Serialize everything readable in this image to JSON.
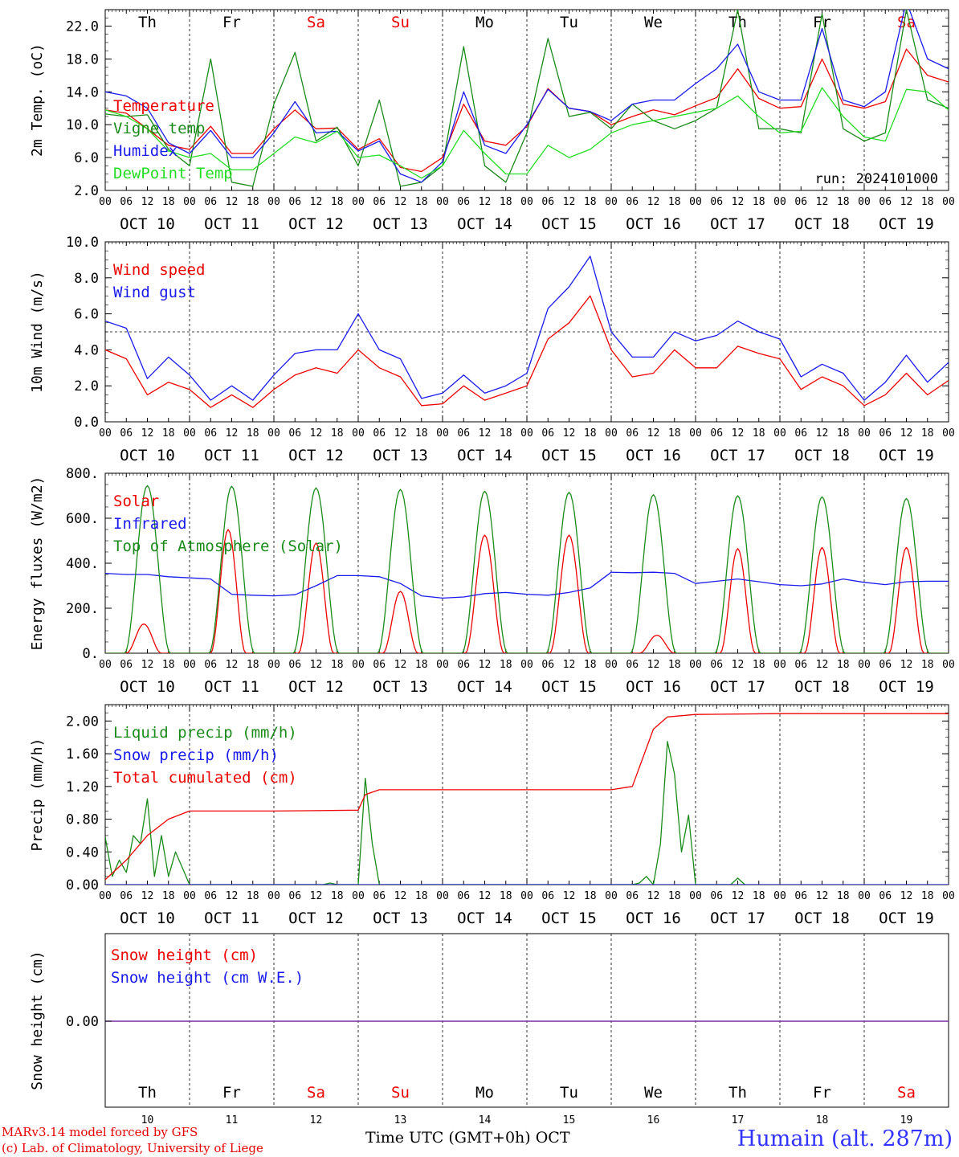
{
  "days": {
    "weekday_labels": [
      "Th",
      "Fr",
      "Sa",
      "Su",
      "Mo",
      "Tu",
      "We",
      "Th",
      "Fr",
      "Sa"
    ],
    "weekend_flags": [
      false,
      false,
      true,
      true,
      false,
      false,
      false,
      false,
      false,
      true
    ],
    "date_labels": [
      "OCT 10",
      "OCT 11",
      "OCT 12",
      "OCT 13",
      "OCT 14",
      "OCT 15",
      "OCT 16",
      "OCT 17",
      "OCT 18",
      "OCT 19"
    ],
    "hour_labels": [
      "00",
      "06",
      "12",
      "18"
    ],
    "final_hour_label": "00",
    "bottom_day_numbers": [
      "10",
      "11",
      "12",
      "13",
      "14",
      "15",
      "16",
      "17",
      "18",
      "19"
    ]
  },
  "colors": {
    "red": "#ee0000",
    "green": "#1a8a1a",
    "blue": "#1a1aee",
    "light_green": "#22dd22",
    "purple": "#7a2aa6",
    "weekend_label": "#ee0000",
    "weekday_label": "#000000"
  },
  "footer": {
    "model_line": "MARv3.14 model forced by GFS",
    "copyright_line": "(c) Lab. of Climatology, University of Liege",
    "axis_title": "Time UTC (GMT+0h) OCT",
    "station_title": "Humain (alt. 287m)"
  },
  "chart_data": [
    {
      "type": "line",
      "ylabel": "2m Temp. (oC)",
      "ylim": [
        2.0,
        24.0
      ],
      "yticks": [
        2.0,
        6.0,
        10.0,
        14.0,
        18.0,
        22.0
      ],
      "ytick_labels": [
        "2.0",
        "6.0",
        "10.0",
        "14.0",
        "18.0",
        "22.0"
      ],
      "annotation": "run: 2024101000",
      "legend_placement": "top-left",
      "x_unit": "hours since Oct 10 00 UTC",
      "series": [
        {
          "name": "Temperature",
          "color": "#ee0000",
          "x": [
            0,
            6,
            12,
            18,
            24,
            30,
            36,
            42,
            48,
            54,
            60,
            66,
            72,
            78,
            84,
            90,
            96,
            102,
            108,
            114,
            120,
            126,
            132,
            138,
            144,
            150,
            156,
            162,
            168,
            174,
            180,
            186,
            192,
            198,
            204,
            210,
            216,
            222,
            228,
            234,
            240
          ],
          "y": [
            11.8,
            11.4,
            9.5,
            7.5,
            7.0,
            9.8,
            6.5,
            6.5,
            9.5,
            11.8,
            9.5,
            9.6,
            7.0,
            8.3,
            4.8,
            4.3,
            6.0,
            12.5,
            8.0,
            7.5,
            9.8,
            14.4,
            12.0,
            11.6,
            10.0,
            11.0,
            11.8,
            11.2,
            12.3,
            13.3,
            16.8,
            13.2,
            12.0,
            12.2,
            18.0,
            12.5,
            12.0,
            12.8,
            19.2,
            16.0,
            15.2
          ]
        },
        {
          "name": "Vigne temp",
          "color": "#1a8a1a",
          "x": [
            0,
            6,
            12,
            18,
            24,
            30,
            36,
            42,
            48,
            54,
            60,
            66,
            72,
            78,
            84,
            90,
            96,
            102,
            108,
            114,
            120,
            126,
            132,
            138,
            144,
            150,
            156,
            162,
            168,
            174,
            180,
            186,
            192,
            198,
            204,
            210,
            216,
            222,
            228,
            234,
            240
          ],
          "y": [
            11.3,
            11.0,
            11.2,
            7.0,
            5.0,
            18.0,
            3.0,
            2.5,
            12.5,
            18.8,
            8.0,
            9.7,
            5.0,
            13.0,
            2.5,
            3.0,
            5.0,
            19.5,
            5.0,
            3.0,
            9.0,
            20.5,
            11.0,
            11.5,
            9.5,
            12.5,
            10.5,
            9.5,
            10.5,
            12.0,
            24.0,
            9.5,
            9.5,
            9.0,
            23.5,
            9.5,
            8.0,
            9.0,
            24.0,
            13.0,
            12.0
          ]
        },
        {
          "name": "Humidex",
          "color": "#1a1aee",
          "x": [
            0,
            6,
            12,
            18,
            24,
            30,
            36,
            42,
            48,
            54,
            60,
            66,
            72,
            78,
            84,
            90,
            96,
            102,
            108,
            114,
            120,
            126,
            132,
            138,
            144,
            150,
            156,
            162,
            168,
            174,
            180,
            186,
            192,
            198,
            204,
            210,
            216,
            222,
            228,
            234,
            240
          ],
          "y": [
            14.0,
            13.5,
            12.0,
            7.8,
            6.5,
            9.3,
            6.0,
            6.0,
            9.0,
            12.8,
            9.0,
            9.2,
            6.8,
            8.0,
            4.0,
            3.0,
            5.5,
            14.0,
            7.5,
            6.5,
            10.0,
            14.3,
            12.0,
            11.6,
            10.5,
            12.5,
            13.0,
            13.0,
            15.0,
            16.8,
            19.8,
            14.0,
            13.0,
            13.0,
            21.7,
            13.0,
            12.2,
            14.0,
            25.0,
            18.0,
            16.8
          ]
        },
        {
          "name": "DewPoint Temp",
          "color": "#22dd22",
          "x": [
            0,
            6,
            12,
            18,
            24,
            30,
            36,
            42,
            48,
            54,
            60,
            66,
            72,
            78,
            84,
            90,
            96,
            102,
            108,
            114,
            120,
            126,
            132,
            138,
            144,
            150,
            156,
            162,
            168,
            174,
            180,
            186,
            192,
            198,
            204,
            210,
            216,
            222,
            228,
            234,
            240
          ],
          "y": [
            11.8,
            11.0,
            9.5,
            6.8,
            6.0,
            6.5,
            4.5,
            4.5,
            6.5,
            8.5,
            7.8,
            9.2,
            6.0,
            6.3,
            5.0,
            3.5,
            5.0,
            9.3,
            6.5,
            4.0,
            4.0,
            7.5,
            6.0,
            7.0,
            9.0,
            10.0,
            10.5,
            11.0,
            11.5,
            12.0,
            13.5,
            11.0,
            9.0,
            9.2,
            14.5,
            11.0,
            8.5,
            8.0,
            14.3,
            14.0,
            11.8
          ]
        }
      ]
    },
    {
      "type": "line",
      "ylabel": "10m Wind (m/s)",
      "ylim": [
        0.0,
        10.0
      ],
      "yticks": [
        0.0,
        2.0,
        4.0,
        6.0,
        8.0,
        10.0
      ],
      "ytick_labels": [
        "0.0",
        "2.0",
        "4.0",
        "6.0",
        "8.0",
        "10.0"
      ],
      "reference_line": 5.0,
      "legend_placement": "top-left",
      "x_unit": "hours since Oct 10 00 UTC",
      "series": [
        {
          "name": "Wind speed",
          "color": "#ee0000",
          "x": [
            0,
            6,
            12,
            18,
            24,
            30,
            36,
            42,
            48,
            54,
            60,
            66,
            72,
            78,
            84,
            90,
            96,
            102,
            108,
            114,
            120,
            126,
            132,
            138,
            144,
            150,
            156,
            162,
            168,
            174,
            180,
            186,
            192,
            198,
            204,
            210,
            216,
            222,
            228,
            234,
            240
          ],
          "y": [
            4.0,
            3.5,
            1.5,
            2.2,
            1.8,
            0.8,
            1.5,
            0.8,
            1.8,
            2.6,
            3.0,
            2.7,
            4.0,
            3.0,
            2.5,
            0.9,
            1.0,
            2.0,
            1.2,
            1.6,
            2.0,
            4.6,
            5.5,
            7.0,
            4.0,
            2.5,
            2.7,
            4.0,
            3.0,
            3.0,
            4.2,
            3.8,
            3.5,
            1.8,
            2.5,
            2.0,
            0.9,
            1.5,
            2.7,
            1.5,
            2.3
          ]
        },
        {
          "name": "Wind gust",
          "color": "#1a1aee",
          "x": [
            0,
            6,
            12,
            18,
            24,
            30,
            36,
            42,
            48,
            54,
            60,
            66,
            72,
            78,
            84,
            90,
            96,
            102,
            108,
            114,
            120,
            126,
            132,
            138,
            144,
            150,
            156,
            162,
            168,
            174,
            180,
            186,
            192,
            198,
            204,
            210,
            216,
            222,
            228,
            234,
            240
          ],
          "y": [
            5.6,
            5.2,
            2.4,
            3.6,
            2.6,
            1.2,
            2.0,
            1.2,
            2.6,
            3.8,
            4.0,
            4.0,
            6.0,
            4.0,
            3.5,
            1.3,
            1.6,
            2.6,
            1.6,
            2.0,
            2.7,
            6.3,
            7.5,
            9.2,
            5.0,
            3.6,
            3.6,
            5.0,
            4.5,
            4.8,
            5.6,
            5.0,
            4.6,
            2.5,
            3.2,
            2.7,
            1.2,
            2.2,
            3.7,
            2.2,
            3.3
          ]
        }
      ]
    },
    {
      "type": "line",
      "ylabel": "Energy fluxes (W/m2)",
      "ylim": [
        0,
        800
      ],
      "yticks": [
        0,
        200,
        400,
        600,
        800
      ],
      "ytick_labels": [
        "0.",
        "200.",
        "400.",
        "600.",
        "800."
      ],
      "legend_placement": "top-left",
      "x_unit": "hours since Oct 10 00 UTC",
      "series": [
        {
          "name": "Solar",
          "color": "#ee0000",
          "peaks": [
            {
              "x": 11,
              "y": 130,
              "half_width": 5
            },
            {
              "x": 35,
              "y": 550,
              "half_width": 5
            },
            {
              "x": 60,
              "y": 490,
              "half_width": 5
            },
            {
              "x": 84,
              "y": 275,
              "half_width": 5
            },
            {
              "x": 108,
              "y": 525,
              "half_width": 5.5
            },
            {
              "x": 132,
              "y": 525,
              "half_width": 5.5
            },
            {
              "x": 157,
              "y": 80,
              "half_width": 5
            },
            {
              "x": 180,
              "y": 465,
              "half_width": 5
            },
            {
              "x": 204,
              "y": 470,
              "half_width": 5
            },
            {
              "x": 228,
              "y": 470,
              "half_width": 5
            }
          ]
        },
        {
          "name": "Infrared",
          "color": "#1a1aee",
          "x": [
            0,
            6,
            12,
            18,
            24,
            30,
            36,
            42,
            48,
            54,
            60,
            66,
            72,
            78,
            84,
            90,
            96,
            102,
            108,
            114,
            120,
            126,
            132,
            138,
            144,
            150,
            156,
            162,
            168,
            174,
            180,
            186,
            192,
            198,
            204,
            210,
            216,
            222,
            228,
            234,
            240
          ],
          "y": [
            355,
            350,
            350,
            340,
            335,
            330,
            262,
            258,
            255,
            260,
            300,
            345,
            345,
            340,
            310,
            255,
            245,
            250,
            265,
            270,
            262,
            258,
            270,
            290,
            360,
            358,
            360,
            355,
            310,
            320,
            330,
            318,
            305,
            300,
            308,
            330,
            315,
            305,
            318,
            320,
            320
          ]
        },
        {
          "name": "Top of Atmosphere (Solar)",
          "color": "#1a8a1a",
          "peaks": [
            {
              "x": 12,
              "y": 745,
              "half_width": 6.5
            },
            {
              "x": 36,
              "y": 742,
              "half_width": 6.5
            },
            {
              "x": 60,
              "y": 735,
              "half_width": 6.5
            },
            {
              "x": 84,
              "y": 728,
              "half_width": 6.5
            },
            {
              "x": 108,
              "y": 720,
              "half_width": 6.5
            },
            {
              "x": 132,
              "y": 715,
              "half_width": 6.5
            },
            {
              "x": 156,
              "y": 705,
              "half_width": 6.5
            },
            {
              "x": 180,
              "y": 700,
              "half_width": 6.5
            },
            {
              "x": 204,
              "y": 695,
              "half_width": 6.5
            },
            {
              "x": 228,
              "y": 688,
              "half_width": 6.5
            }
          ]
        }
      ]
    },
    {
      "type": "line",
      "ylabel": "Precip (mm/h)",
      "ylim": [
        0.0,
        2.2
      ],
      "yticks": [
        0.0,
        0.4,
        0.8,
        1.2,
        1.6,
        2.0
      ],
      "ytick_labels": [
        "0.00",
        "0.40",
        "0.80",
        "1.20",
        "1.60",
        "2.00"
      ],
      "legend_placement": "top-left",
      "x_unit": "hours since Oct 10 00 UTC",
      "series": [
        {
          "name": "Liquid precip (mm/h)",
          "color": "#1a8a1a",
          "x": [
            0,
            2,
            4,
            6,
            8,
            10,
            12,
            14,
            16,
            18,
            20,
            22,
            24,
            26,
            28,
            60,
            62,
            64,
            66,
            68,
            70,
            72,
            74,
            76,
            78,
            80,
            150,
            152,
            154,
            156,
            158,
            160,
            162,
            164,
            166,
            168,
            178,
            180,
            182
          ],
          "y": [
            0.58,
            0.1,
            0.3,
            0.15,
            0.6,
            0.5,
            1.05,
            0.1,
            0.6,
            0.1,
            0.4,
            0.2,
            0.0,
            0.0,
            0.0,
            0.0,
            0.0,
            0.02,
            0.0,
            0.0,
            0.0,
            0.0,
            1.3,
            0.5,
            0.0,
            0.0,
            0.0,
            0.02,
            0.1,
            0.0,
            0.5,
            1.75,
            1.35,
            0.4,
            0.85,
            0.0,
            0.0,
            0.08,
            0.0
          ]
        },
        {
          "name": "Snow precip (mm/h)",
          "color": "#1a1aee",
          "x": [
            0,
            240
          ],
          "y": [
            0,
            0
          ]
        },
        {
          "name": "Total cumulated (cm)",
          "color": "#ee0000",
          "x": [
            0,
            6,
            12,
            18,
            24,
            48,
            72,
            74,
            78,
            96,
            120,
            144,
            150,
            156,
            160,
            168,
            192,
            216,
            240
          ],
          "y": [
            0.06,
            0.3,
            0.6,
            0.8,
            0.9,
            0.9,
            0.91,
            1.1,
            1.16,
            1.16,
            1.16,
            1.16,
            1.2,
            1.9,
            2.05,
            2.08,
            2.09,
            2.09,
            2.09
          ]
        }
      ]
    },
    {
      "type": "line",
      "ylabel": "Snow height (cm)",
      "ytick_labels": [
        "0.00"
      ],
      "legend_placement": "top-left",
      "series": [
        {
          "name": "Snow height (cm)",
          "color": "#ee0000",
          "x": [
            0,
            240
          ],
          "y": [
            0,
            0
          ]
        },
        {
          "name": "Snow height (cm W.E.)",
          "color": "#1a1aee",
          "x": [
            0,
            240
          ],
          "y": [
            0,
            0
          ]
        }
      ]
    }
  ]
}
